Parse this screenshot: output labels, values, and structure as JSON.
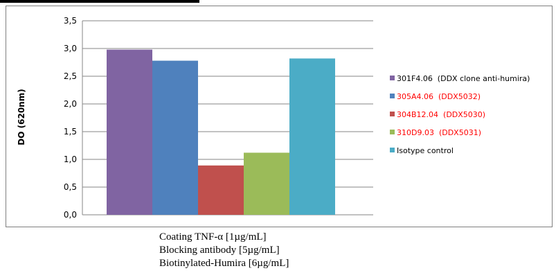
{
  "chart_data": {
    "type": "bar",
    "ylabel": "DO (620nm)",
    "xlabel": "",
    "ylim": [
      0,
      3.5
    ],
    "yticks": [
      "0,0",
      "0,5",
      "1,0",
      "1,5",
      "2,0",
      "2,5",
      "3,0",
      "3,5"
    ],
    "ytick_values": [
      0,
      0.5,
      1.0,
      1.5,
      2.0,
      2.5,
      3.0,
      3.5
    ],
    "grid": "horizontal",
    "legend_position": "right",
    "series": [
      {
        "name": "301F4.06  (DDX clone anti-humira)",
        "value": 2.98,
        "color": "#8064A2",
        "label_color": "#000000"
      },
      {
        "name": "305A4.06  (DDX5032)",
        "value": 2.78,
        "color": "#4F81BD",
        "label_color": "#FF0000"
      },
      {
        "name": "304B12.04  (DDX5030)",
        "value": 0.89,
        "color": "#C0504D",
        "label_color": "#FF0000"
      },
      {
        "name": "310D9.03  (DDX5031)",
        "value": 1.12,
        "color": "#9BBB59",
        "label_color": "#FF0000"
      },
      {
        "name": "Isotype control",
        "value": 2.82,
        "color": "#4BACC6",
        "label_color": "#000000"
      }
    ]
  },
  "caption": {
    "line1": "Coating TNF-α [1µg/mL]",
    "line2": "Blocking antibody [5µg/mL]",
    "line3": "Biotinylated-Humira [6µg/mL]"
  }
}
